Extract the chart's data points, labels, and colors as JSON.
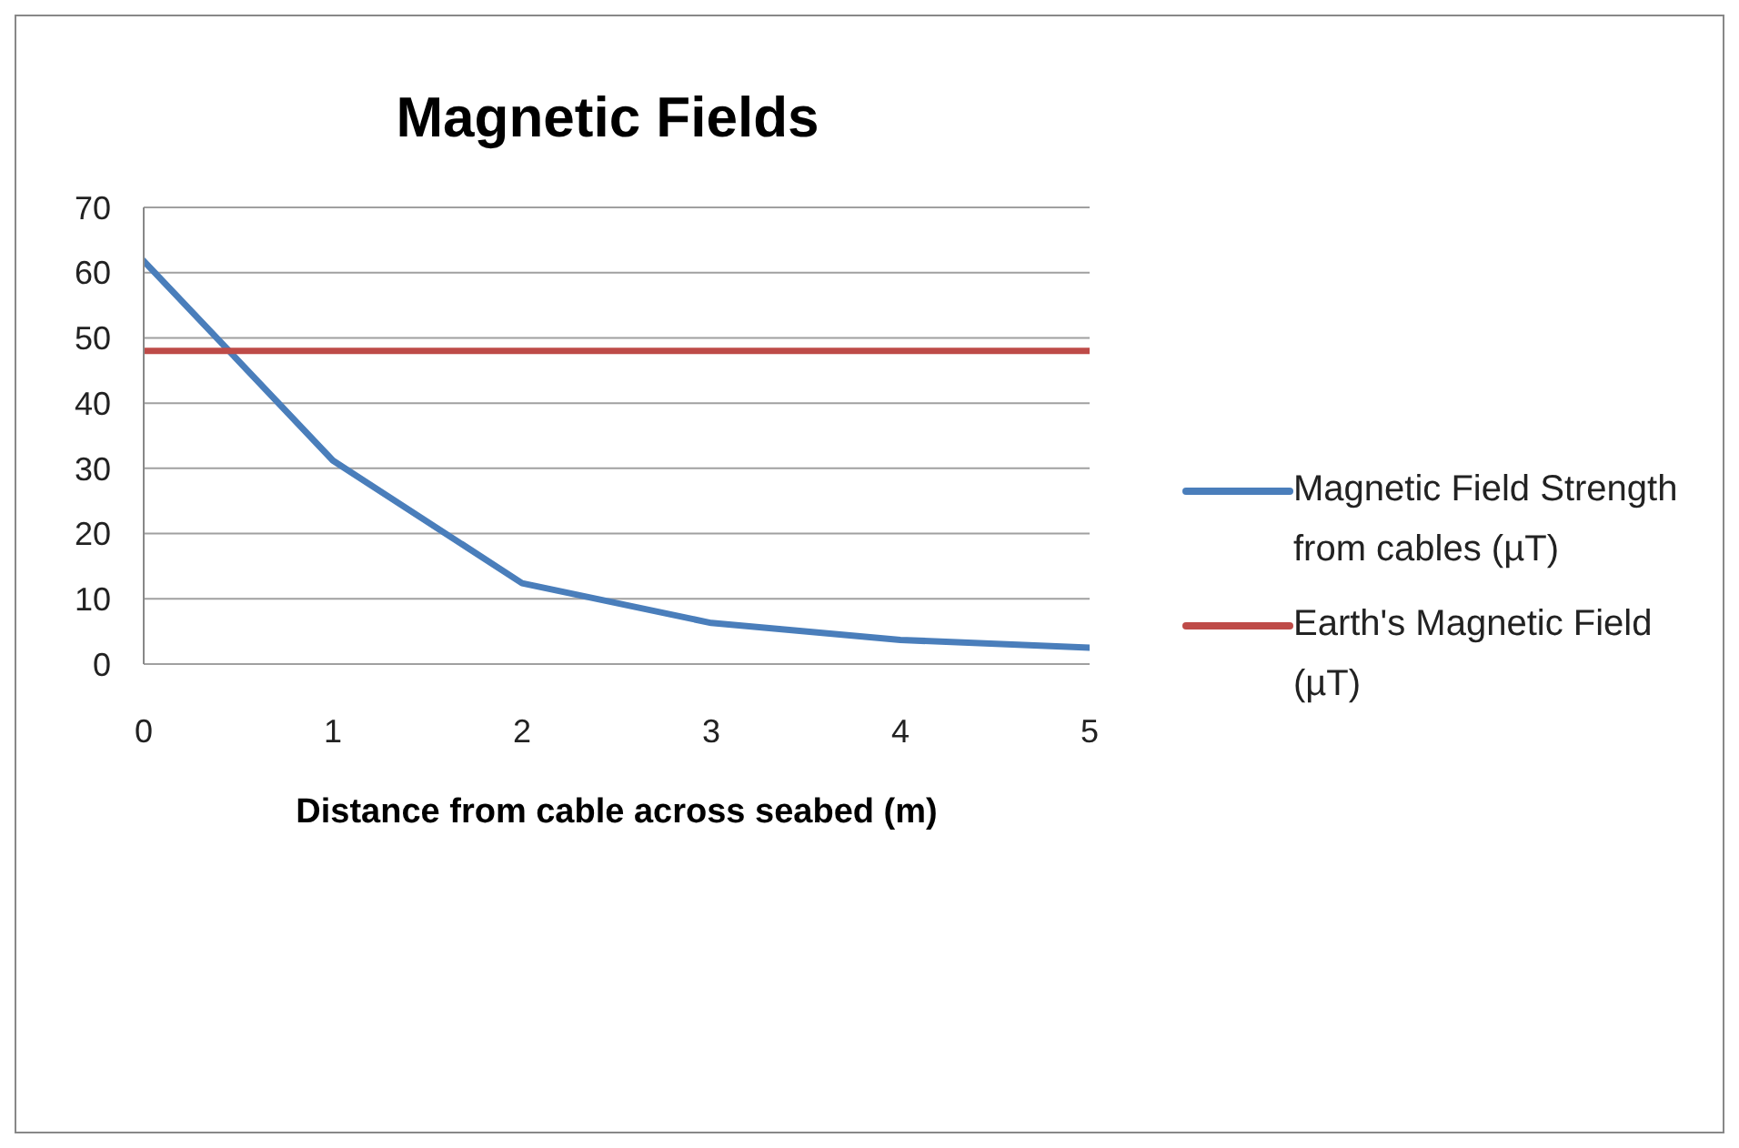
{
  "chart_data": {
    "type": "line",
    "title": "Magnetic Fields",
    "xlabel": "Distance from cable across seabed (m)",
    "x": [
      0,
      1,
      2,
      3,
      4,
      5
    ],
    "series": [
      {
        "name": "Magnetic Field Strength from cables (µT)",
        "color": "#4a7ebb",
        "values": [
          61.8,
          31.2,
          12.4,
          6.3,
          3.7,
          2.5
        ]
      },
      {
        "name": "Earth's Magnetic Field (µT)",
        "color": "#be4b48",
        "values": [
          48,
          48,
          48,
          48,
          48,
          48
        ]
      }
    ],
    "xlim": [
      0,
      5
    ],
    "xticks": [
      0,
      1,
      2,
      3,
      4,
      5
    ],
    "ylim": [
      0,
      70
    ],
    "yticks": [
      0,
      10,
      20,
      30,
      40,
      50,
      60,
      70
    ],
    "grid": "y",
    "legend": "right",
    "marker": "none",
    "line_style": "solid"
  }
}
